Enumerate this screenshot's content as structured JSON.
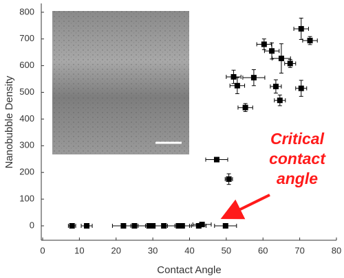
{
  "chart_data": {
    "type": "scatter",
    "x_label": "Contact Angle",
    "y_label": "Nanobubble Density",
    "xlim": [
      0,
      80
    ],
    "xticks": [
      0,
      10,
      20,
      30,
      40,
      50,
      60,
      70,
      80
    ],
    "ylim": [
      -54,
      833
    ],
    "yticks": [
      0,
      100,
      200,
      300,
      400,
      500,
      600,
      700,
      800
    ],
    "color": "#000000",
    "annotation_color": "#ff1a1a",
    "annotation": [
      "Critical",
      "contact",
      "angle"
    ],
    "series": [
      {
        "name": "Nanobubble Density",
        "x": [
          8,
          12,
          22,
          25,
          29,
          30,
          33,
          37,
          38,
          42.5,
          43.4,
          49.8,
          47.4,
          50.7,
          55.2,
          52,
          53,
          57.5,
          60.3,
          62.4,
          65,
          63.5,
          64.6,
          67.4,
          70.4,
          70.4,
          72.8
        ],
        "values": [
          0,
          0,
          0,
          0,
          0,
          0,
          0,
          0,
          0,
          0,
          5,
          0,
          248,
          175,
          443,
          558,
          525,
          555,
          680,
          655,
          627,
          522,
          470,
          608,
          515,
          738,
          694
        ],
        "x_err": [
          1,
          1.5,
          3,
          3,
          5,
          4,
          3,
          3,
          4,
          2,
          2.5,
          3,
          3,
          1,
          2,
          2,
          2,
          3,
          2,
          2,
          2.5,
          1.5,
          1.5,
          1.5,
          1.5,
          2,
          2
        ],
        "y_err": [
          0,
          0,
          0,
          0,
          0,
          0,
          0,
          0,
          0,
          0,
          0,
          0,
          0,
          20,
          15,
          25,
          30,
          30,
          20,
          30,
          55,
          25,
          20,
          15,
          30,
          40,
          15
        ]
      }
    ]
  }
}
